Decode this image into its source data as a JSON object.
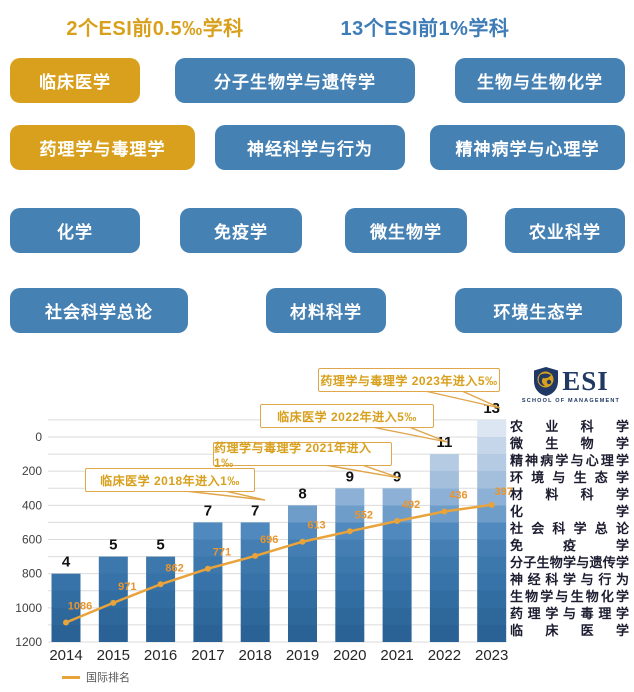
{
  "header": {
    "left_label": "2个ESI前0.5‰学科",
    "right_label": "13个ESI前1%学科"
  },
  "subject_buttons": {
    "rows": [
      [
        {
          "label": "临床医学",
          "style": "gold"
        },
        {
          "label": "分子生物学与遗传学",
          "style": "blue"
        },
        {
          "label": "生物与生物化学",
          "style": "blue"
        }
      ],
      [
        {
          "label": "药理学与毒理学",
          "style": "gold"
        },
        {
          "label": "神经科学与行为",
          "style": "blue"
        },
        {
          "label": "精神病学与心理学",
          "style": "blue"
        }
      ],
      [
        {
          "label": "化学",
          "style": "blue"
        },
        {
          "label": "免疫学",
          "style": "blue"
        },
        {
          "label": "微生物学",
          "style": "blue"
        },
        {
          "label": "农业科学",
          "style": "blue"
        }
      ],
      [
        {
          "label": "社会科学总论",
          "style": "blue"
        },
        {
          "label": "材料科学",
          "style": "blue"
        },
        {
          "label": "环境生态学",
          "style": "blue"
        }
      ]
    ]
  },
  "colors": {
    "gold": "#D8A01D",
    "blue": "#4681B4",
    "header_blue": "#3E7CB8",
    "navy": "#1F3864",
    "line_orange": "#E9A33B",
    "line_label_orange": "#E8952D",
    "annotation_gold": "#E0A64B",
    "grid_gray": "#DBDBDB",
    "bar_band_colors": [
      "#dce6f2",
      "#c6d6ea",
      "#b5cbe3",
      "#a3bfdc",
      "#8db1d6",
      "#6f9dca",
      "#5089bd",
      "#447eb3",
      "#3d78ad",
      "#3773a8",
      "#326da1",
      "#2e689b",
      "#2a6295"
    ]
  },
  "chart_data": {
    "type": "bar",
    "categories": [
      "2014",
      "2015",
      "2016",
      "2017",
      "2018",
      "2019",
      "2020",
      "2021",
      "2022",
      "2023"
    ],
    "series": [
      {
        "name": "ESI前1%学科数",
        "type": "bar",
        "values": [
          4,
          5,
          5,
          7,
          7,
          8,
          9,
          9,
          11,
          13
        ]
      },
      {
        "name": "国际排名",
        "type": "line",
        "values": [
          1086,
          971,
          862,
          771,
          696,
          613,
          552,
          492,
          436,
          397
        ]
      }
    ],
    "title": "",
    "xlabel": "",
    "ylabel": "",
    "yaxis": {
      "ticks": [
        0,
        200,
        400,
        600,
        800,
        1000,
        1200
      ],
      "inverted": true,
      "range": [
        -100,
        1200
      ]
    },
    "grid": true,
    "legend": [
      "国际排名"
    ],
    "legend_position": "bottom-left"
  },
  "annotations": [
    {
      "label": "临床医学 2018年进入1‰"
    },
    {
      "label": "药理学与毒理学 2021年进入1‰"
    },
    {
      "label": "临床医学 2022年进入5‰"
    },
    {
      "label": "药理学与毒理学 2023年进入5‰"
    }
  ],
  "esi_logo": {
    "title": "ESI",
    "subtitle": "SCHOOL OF MANAGEMENT"
  },
  "esi_top13_list": [
    "农业科学",
    "微生物学",
    "精神病学与心理学",
    "环境与生态学",
    "材料科学",
    "化学",
    "社会科学总论",
    "免疫学",
    "分子生物学与遗传学",
    "神经科学与行为",
    "生物学与生物化学",
    "药理学与毒理学",
    "临床医学"
  ],
  "legend_label": "国际排名"
}
